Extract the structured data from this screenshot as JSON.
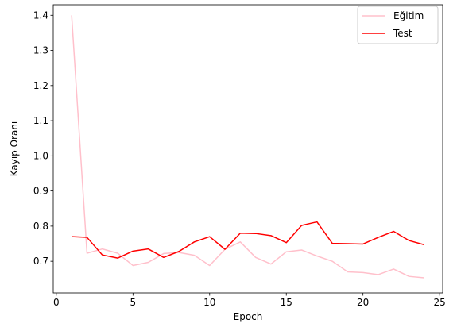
{
  "chart_data": {
    "type": "line",
    "xlabel": "Epoch",
    "ylabel": "Kayıp Oranı",
    "xlim": [
      -0.2,
      25.2
    ],
    "ylim": [
      0.61,
      1.43
    ],
    "xticks": [
      0,
      5,
      10,
      15,
      20,
      25
    ],
    "yticks": [
      0.7,
      0.8,
      0.9,
      1.0,
      1.1,
      1.2,
      1.3,
      1.4
    ],
    "xtick_labels": [
      "0",
      "5",
      "10",
      "15",
      "20",
      "25"
    ],
    "ytick_labels": [
      "0.7",
      "0.8",
      "0.9",
      "1.0",
      "1.1",
      "1.2",
      "1.3",
      "1.4"
    ],
    "grid": false,
    "legend_position": "top-right",
    "x": [
      1,
      2,
      3,
      4,
      5,
      6,
      7,
      8,
      9,
      10,
      11,
      12,
      13,
      14,
      15,
      16,
      17,
      18,
      19,
      20,
      21,
      22,
      23,
      24
    ],
    "series": [
      {
        "name": "Eğitim",
        "color": "#ffc0cb",
        "values": [
          1.4,
          0.723,
          0.735,
          0.723,
          0.688,
          0.697,
          0.722,
          0.725,
          0.717,
          0.688,
          0.734,
          0.755,
          0.711,
          0.692,
          0.727,
          0.732,
          0.715,
          0.7,
          0.67,
          0.668,
          0.662,
          0.678,
          0.657,
          0.653
        ]
      },
      {
        "name": "Test",
        "color": "#ff0000",
        "values": [
          0.77,
          0.768,
          0.718,
          0.709,
          0.729,
          0.735,
          0.711,
          0.728,
          0.755,
          0.77,
          0.734,
          0.78,
          0.779,
          0.773,
          0.753,
          0.802,
          0.812,
          0.751,
          0.75,
          0.749,
          0.768,
          0.785,
          0.759,
          0.747
        ]
      }
    ]
  }
}
